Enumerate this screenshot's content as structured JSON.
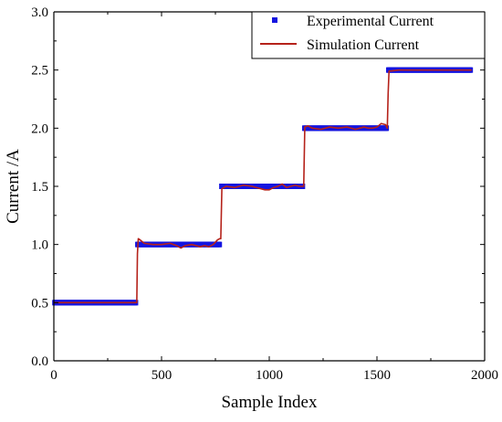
{
  "chart_data": {
    "type": "line",
    "title": "",
    "xlabel": "Sample Index",
    "ylabel": "Current /A",
    "xlim": [
      0,
      2000
    ],
    "ylim": [
      0,
      3.0
    ],
    "xticks": [
      0,
      500,
      1000,
      1500,
      2000
    ],
    "yticks": [
      0.0,
      0.5,
      1.0,
      1.5,
      2.0,
      2.5,
      3.0
    ],
    "xtick_labels": [
      "0",
      "500",
      "1000",
      "1500",
      "2000"
    ],
    "ytick_labels": [
      "0.0",
      "0.5",
      "1.0",
      "1.5",
      "2.0",
      "2.5",
      "3.0"
    ],
    "grid": false,
    "legend_position": "top-right",
    "series": [
      {
        "name": "Experimental Current",
        "style": "square-markers",
        "color": "#1515e0",
        "segments": [
          {
            "x": [
              0,
              385
            ],
            "y": 0.5
          },
          {
            "x": [
              385,
              775
            ],
            "y": 1.0
          },
          {
            "x": [
              775,
              1160
            ],
            "y": 1.5
          },
          {
            "x": [
              1160,
              1550
            ],
            "y": 2.0
          },
          {
            "x": [
              1550,
              1940
            ],
            "y": 2.5
          }
        ]
      },
      {
        "name": "Simulation Current",
        "style": "line",
        "color": "#b5221a",
        "x": [
          0,
          385,
          388,
          392,
          400,
          420,
          460,
          500,
          540,
          570,
          590,
          610,
          640,
          660,
          680,
          700,
          720,
          740,
          760,
          770,
          775,
          780,
          800,
          840,
          880,
          920,
          960,
          980,
          1000,
          1020,
          1040,
          1060,
          1080,
          1100,
          1120,
          1140,
          1155,
          1160,
          1165,
          1180,
          1200,
          1240,
          1280,
          1320,
          1360,
          1400,
          1420,
          1440,
          1460,
          1480,
          1500,
          1520,
          1540,
          1548,
          1552,
          1556,
          1600,
          1700,
          1800,
          1940
        ],
        "y": [
          0.5,
          0.5,
          0.92,
          1.05,
          1.04,
          1.01,
          1.0,
          1.0,
          1.01,
          0.99,
          0.97,
          0.99,
          1.0,
          0.99,
          0.98,
          0.99,
          0.98,
          1.0,
          1.04,
          1.05,
          1.05,
          1.48,
          1.5,
          1.49,
          1.51,
          1.5,
          1.48,
          1.47,
          1.47,
          1.49,
          1.5,
          1.52,
          1.49,
          1.5,
          1.51,
          1.5,
          1.5,
          1.5,
          2.01,
          2.02,
          2.0,
          1.99,
          2.01,
          2.0,
          2.01,
          1.99,
          2.0,
          2.01,
          2.0,
          2.0,
          2.01,
          2.04,
          2.03,
          2.0,
          2.3,
          2.49,
          2.5,
          2.5,
          2.5,
          2.5
        ]
      }
    ]
  }
}
